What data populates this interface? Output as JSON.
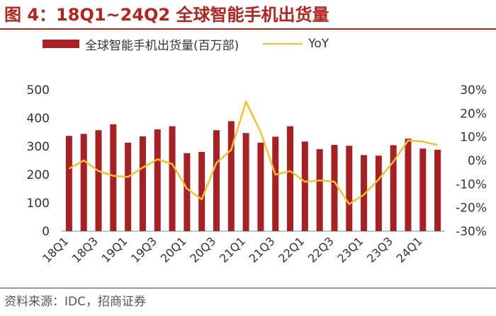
{
  "header": {
    "title": "图 4：18Q1~24Q2 全球智能手机出货量"
  },
  "footer": {
    "source": "资料来源：IDC，招商证券"
  },
  "colors": {
    "bar": "#a81f24",
    "line": "#f2c12e",
    "title": "#b3241f",
    "text": "#333333"
  },
  "chart_data": {
    "type": "bar+line",
    "categories": [
      "18Q1",
      "18Q2",
      "18Q3",
      "18Q4",
      "19Q1",
      "19Q2",
      "19Q3",
      "19Q4",
      "20Q1",
      "20Q2",
      "20Q3",
      "20Q4",
      "21Q1",
      "21Q2",
      "21Q3",
      "21Q4",
      "22Q1",
      "22Q2",
      "22Q3",
      "22Q4",
      "23Q1",
      "23Q2",
      "23Q3",
      "23Q4",
      "24Q1",
      "24Q2"
    ],
    "x_tick_labels": [
      "18Q1",
      "18Q3",
      "19Q1",
      "19Q3",
      "20Q1",
      "20Q3",
      "21Q1",
      "21Q3",
      "22Q1",
      "22Q3",
      "23Q1",
      "23Q3",
      "24Q1"
    ],
    "series": [
      {
        "name": "全球智能手机出货量(百万部)",
        "type": "bar",
        "axis": "left",
        "values": [
          337,
          344,
          357,
          378,
          313,
          335,
          360,
          371,
          276,
          280,
          357,
          389,
          347,
          313,
          334,
          371,
          317,
          290,
          305,
          302,
          269,
          267,
          304,
          327,
          292,
          288
        ]
      },
      {
        "name": "YoY",
        "type": "line",
        "axis": "right",
        "values": [
          -3.5,
          0,
          -4.5,
          -6.5,
          -7,
          -3,
          0.5,
          -1.5,
          -12,
          -16.5,
          -1,
          4.5,
          25,
          12,
          -6,
          -4.5,
          -9,
          -8.5,
          -9,
          -18.5,
          -14.5,
          -8,
          -0.5,
          8.5,
          8,
          6.5
        ]
      }
    ],
    "y_left": {
      "range": [
        0,
        500
      ],
      "ticks": [
        "0",
        "100",
        "200",
        "300",
        "400",
        "500"
      ]
    },
    "y_right": {
      "range": [
        -30,
        30
      ],
      "ticks": [
        "-30%",
        "-20%",
        "-10%",
        "0%",
        "10%",
        "20%",
        "30%"
      ]
    },
    "legend": "top",
    "grid": false
  }
}
